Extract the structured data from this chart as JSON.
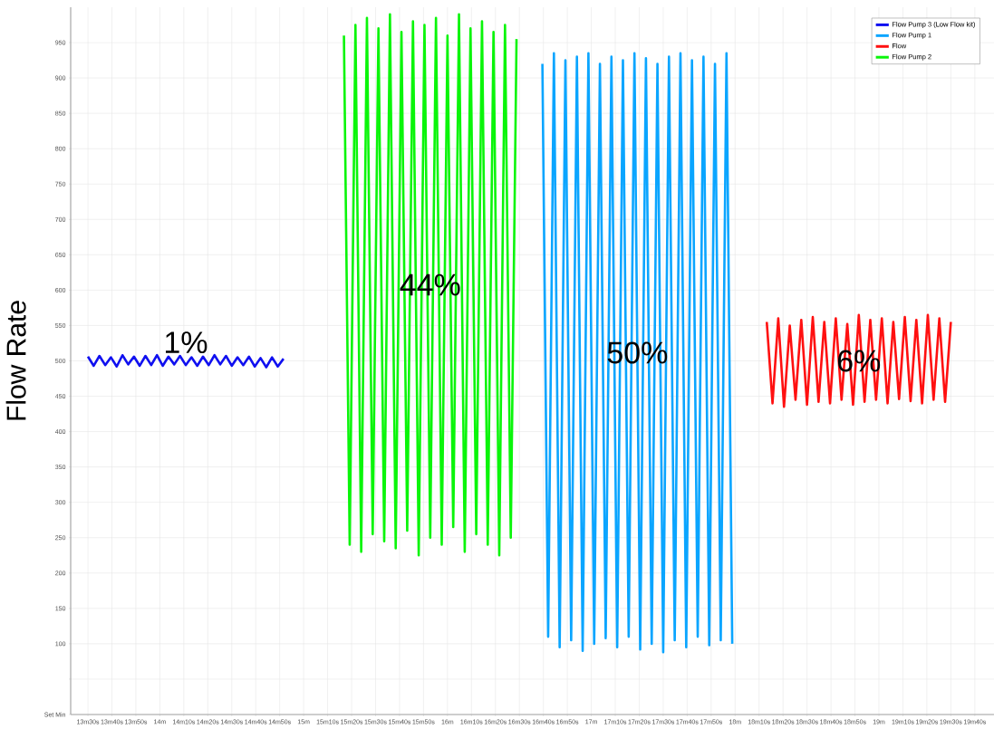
{
  "chart_data": {
    "type": "line",
    "ylabel": "Flow Rate",
    "series": [
      {
        "name": "Flow Pump 3 (Low Flow kit)",
        "color": "#1010f0",
        "x": [
          13.5,
          13.54,
          13.58,
          13.62,
          13.66,
          13.7,
          13.74,
          13.78,
          13.82,
          13.86,
          13.9,
          13.94,
          13.98,
          14.02,
          14.06,
          14.1,
          14.14,
          14.18,
          14.22,
          14.26,
          14.3,
          14.34,
          14.38,
          14.42,
          14.46,
          14.5,
          14.54,
          14.58,
          14.62,
          14.66,
          14.7,
          14.74,
          14.78,
          14.82,
          14.86
        ],
        "values": [
          506,
          493,
          507,
          494,
          505,
          492,
          508,
          495,
          506,
          493,
          507,
          494,
          508,
          493,
          506,
          495,
          507,
          494,
          505,
          493,
          506,
          494,
          508,
          495,
          507,
          493,
          505,
          494,
          506,
          492,
          504,
          491,
          505,
          492,
          503
        ]
      },
      {
        "name": "Flow Pump 1",
        "color": "#0aa5ff",
        "x": [
          16.66,
          16.7,
          16.74,
          16.78,
          16.82,
          16.86,
          16.9,
          16.94,
          16.98,
          17.02,
          17.06,
          17.1,
          17.14,
          17.18,
          17.22,
          17.26,
          17.3,
          17.34,
          17.38,
          17.42,
          17.46,
          17.5,
          17.54,
          17.58,
          17.62,
          17.66,
          17.7,
          17.74,
          17.78,
          17.82,
          17.86,
          17.9,
          17.94,
          17.98
        ],
        "values": [
          920,
          110,
          935,
          95,
          925,
          105,
          930,
          90,
          935,
          100,
          920,
          108,
          930,
          95,
          925,
          110,
          935,
          92,
          928,
          100,
          920,
          88,
          930,
          105,
          935,
          95,
          925,
          110,
          930,
          98,
          920,
          105,
          935,
          100
        ]
      },
      {
        "name": "Flow",
        "color": "#ff1010",
        "x": [
          18.22,
          18.26,
          18.3,
          18.34,
          18.38,
          18.42,
          18.46,
          18.5,
          18.54,
          18.58,
          18.62,
          18.66,
          18.7,
          18.74,
          18.78,
          18.82,
          18.86,
          18.9,
          18.94,
          18.98,
          19.02,
          19.06,
          19.1,
          19.14,
          19.18,
          19.22,
          19.26,
          19.3,
          19.34,
          19.38,
          19.42,
          19.46,
          19.5
        ],
        "values": [
          555,
          440,
          560,
          435,
          550,
          445,
          558,
          438,
          562,
          442,
          555,
          440,
          560,
          445,
          552,
          438,
          565,
          442,
          558,
          445,
          560,
          440,
          555,
          446,
          562,
          443,
          558,
          440,
          565,
          445,
          560,
          442,
          555
        ]
      },
      {
        "name": "Flow Pump 2",
        "color": "#0af50a",
        "x": [
          15.28,
          15.32,
          15.36,
          15.4,
          15.44,
          15.48,
          15.52,
          15.56,
          15.6,
          15.64,
          15.68,
          15.72,
          15.76,
          15.8,
          15.84,
          15.88,
          15.92,
          15.96,
          16.0,
          16.04,
          16.08,
          16.12,
          16.16,
          16.2,
          16.24,
          16.28,
          16.32,
          16.36,
          16.4,
          16.44,
          16.48
        ],
        "values": [
          960,
          240,
          975,
          230,
          985,
          255,
          970,
          245,
          990,
          235,
          965,
          260,
          980,
          225,
          975,
          250,
          985,
          240,
          960,
          265,
          990,
          230,
          970,
          255,
          980,
          240,
          965,
          225,
          975,
          250,
          955
        ]
      }
    ],
    "xlim": [
      13.38,
      19.8
    ],
    "ylim": [
      0,
      1000
    ],
    "xticks": [
      {
        "value": 13.5,
        "label": "13m30s"
      },
      {
        "value": 13.6667,
        "label": "13m40s"
      },
      {
        "value": 13.8333,
        "label": "13m50s"
      },
      {
        "value": 14,
        "label": "14m"
      },
      {
        "value": 14.1667,
        "label": "14m10s"
      },
      {
        "value": 14.3333,
        "label": "14m20s"
      },
      {
        "value": 14.5,
        "label": "14m30s"
      },
      {
        "value": 14.6667,
        "label": "14m40s"
      },
      {
        "value": 14.8333,
        "label": "14m50s"
      },
      {
        "value": 15,
        "label": "15m"
      },
      {
        "value": 15.1667,
        "label": "15m10s"
      },
      {
        "value": 15.3333,
        "label": "15m20s"
      },
      {
        "value": 15.5,
        "label": "15m30s"
      },
      {
        "value": 15.6667,
        "label": "15m40s"
      },
      {
        "value": 15.8333,
        "label": "15m50s"
      },
      {
        "value": 16,
        "label": "16m"
      },
      {
        "value": 16.1667,
        "label": "16m10s"
      },
      {
        "value": 16.3333,
        "label": "16m20s"
      },
      {
        "value": 16.5,
        "label": "16m30s"
      },
      {
        "value": 16.6667,
        "label": "16m40s"
      },
      {
        "value": 16.8333,
        "label": "16m50s"
      },
      {
        "value": 17,
        "label": "17m"
      },
      {
        "value": 17.1667,
        "label": "17m10s"
      },
      {
        "value": 17.3333,
        "label": "17m20s"
      },
      {
        "value": 17.5,
        "label": "17m30s"
      },
      {
        "value": 17.6667,
        "label": "17m40s"
      },
      {
        "value": 17.8333,
        "label": "17m50s"
      },
      {
        "value": 18,
        "label": "18m"
      },
      {
        "value": 18.1667,
        "label": "18m10s"
      },
      {
        "value": 18.3333,
        "label": "18m20s"
      },
      {
        "value": 18.5,
        "label": "18m30s"
      },
      {
        "value": 18.6667,
        "label": "18m40s"
      },
      {
        "value": 18.8333,
        "label": "18m50s"
      },
      {
        "value": 19,
        "label": "19m"
      },
      {
        "value": 19.1667,
        "label": "19m10s"
      },
      {
        "value": 19.3333,
        "label": "19m20s"
      },
      {
        "value": 19.5,
        "label": "19m30s"
      },
      {
        "value": 19.6667,
        "label": "19m40s"
      }
    ],
    "yticks": [
      {
        "value": 0,
        "label": "Set Min"
      },
      {
        "value": 50,
        "label": null
      },
      100,
      150,
      200,
      250,
      300,
      350,
      400,
      450,
      500,
      550,
      600,
      650,
      700,
      750,
      800,
      850,
      900,
      950
    ],
    "annotations": [
      "1%",
      "44%",
      "50%",
      "6%"
    ],
    "grid": true,
    "legend": "top right",
    "marker": "none",
    "line_style": "solid"
  }
}
